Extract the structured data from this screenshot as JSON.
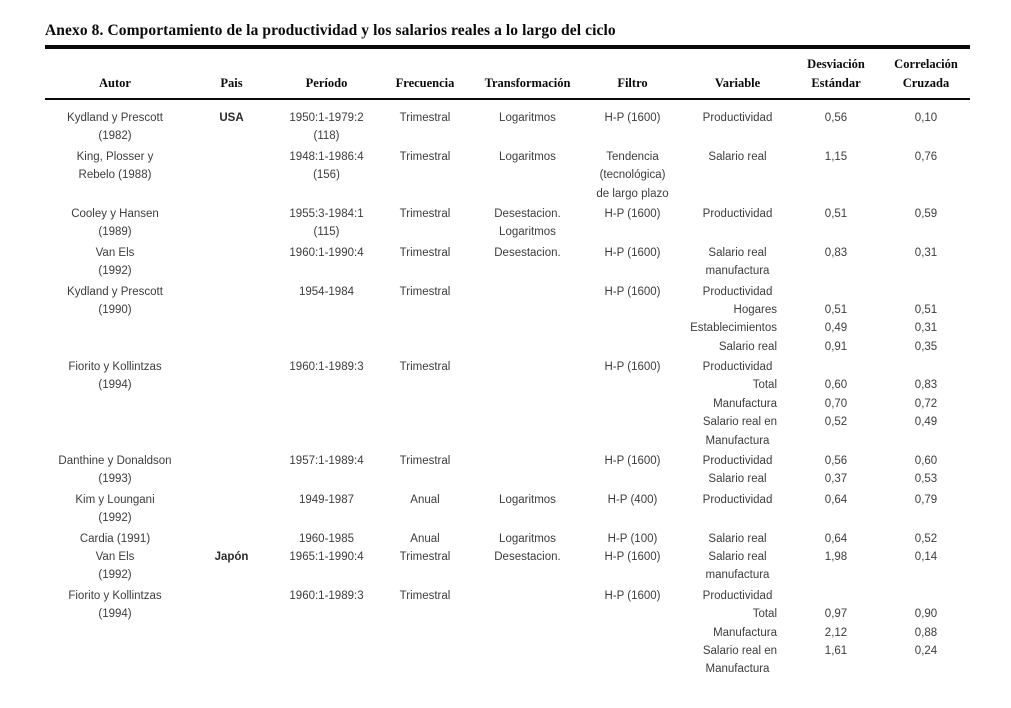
{
  "title": "Anexo 8. Comportamiento de la productividad y los salarios reales a lo largo del ciclo",
  "table": {
    "columns": [
      "Autor",
      "Pais",
      "Período",
      "Frecuencia",
      "Transformación",
      "Filtro",
      "Variable",
      "Desviación\nEstándar",
      "Correlación\nCruzada"
    ],
    "rows": [
      {
        "cells": [
          "Kydland y Prescott",
          "USA",
          "1950:1-1979:2",
          "Trimestral",
          "Logaritmos",
          "H-P (1600)",
          "Productividad",
          "0,56",
          "0,10"
        ]
      },
      {
        "cells": [
          "(1982)",
          "",
          "(118)",
          "",
          "",
          "",
          "",
          "",
          ""
        ]
      },
      {
        "cells": [
          "King, Plosser y",
          "",
          "1948:1-1986:4",
          "Trimestral",
          "Logaritmos",
          "Tendencia",
          "Salario real",
          "1,15",
          "0,76"
        ],
        "gap": true
      },
      {
        "cells": [
          "Rebelo (1988)",
          "",
          "(156)",
          "",
          "",
          "(tecnológica)",
          "",
          "",
          ""
        ]
      },
      {
        "cells": [
          "",
          "",
          "",
          "",
          "",
          "de largo plazo",
          "",
          "",
          ""
        ]
      },
      {
        "cells": [
          "Cooley y Hansen",
          "",
          "1955:3-1984:1",
          "Trimestral",
          "Desestacion.",
          "H-P (1600)",
          "Productividad",
          "0,51",
          "0,59"
        ],
        "gap": true
      },
      {
        "cells": [
          "(1989)",
          "",
          "(115)",
          "",
          "Logaritmos",
          "",
          "",
          "",
          ""
        ]
      },
      {
        "cells": [
          "Van Els",
          "",
          "1960:1-1990:4",
          "Trimestral",
          "Desestacion.",
          "H-P (1600)",
          "Salario real",
          "0,83",
          "0,31"
        ],
        "gap": true
      },
      {
        "cells": [
          "(1992)",
          "",
          "",
          "",
          "",
          "",
          "manufactura",
          "",
          ""
        ]
      },
      {
        "cells": [
          "Kydland y Prescott",
          "",
          "1954-1984",
          "Trimestral",
          "",
          "H-P (1600)",
          "Productividad",
          "",
          ""
        ],
        "gap": true
      },
      {
        "cells": [
          "(1990)",
          "",
          "",
          "",
          "",
          "",
          "Hogares",
          "0,51",
          "0,51"
        ],
        "va": "r"
      },
      {
        "cells": [
          "",
          "",
          "",
          "",
          "",
          "",
          "Establecimientos",
          "0,49",
          "0,31"
        ],
        "va": "r"
      },
      {
        "cells": [
          "",
          "",
          "",
          "",
          "",
          "",
          "Salario real",
          "0,91",
          "0,35"
        ],
        "va": "r"
      },
      {
        "cells": [
          "Fiorito y Kollintzas",
          "",
          "1960:1-1989:3",
          "Trimestral",
          "",
          "H-P (1600)",
          "Productividad",
          "",
          ""
        ],
        "gap": true
      },
      {
        "cells": [
          "(1994)",
          "",
          "",
          "",
          "",
          "",
          "Total",
          "0,60",
          "0,83"
        ],
        "va": "r"
      },
      {
        "cells": [
          "",
          "",
          "",
          "",
          "",
          "",
          "Manufactura",
          "0,70",
          "0,72"
        ],
        "va": "r"
      },
      {
        "cells": [
          "",
          "",
          "",
          "",
          "",
          "",
          "Salario real en",
          "0,52",
          "0,49"
        ],
        "va": "r"
      },
      {
        "cells": [
          "",
          "",
          "",
          "",
          "",
          "",
          "Manufactura",
          "",
          ""
        ]
      },
      {
        "cells": [
          "Danthine y Donaldson",
          "",
          "1957:1-1989:4",
          "Trimestral",
          "",
          "H-P (1600)",
          "Productividad",
          "0,56",
          "0,60"
        ],
        "gap": true
      },
      {
        "cells": [
          "(1993)",
          "",
          "",
          "",
          "",
          "",
          "Salario real",
          "0,37",
          "0,53"
        ]
      },
      {
        "cells": [
          "Kim y Loungani",
          "",
          "1949-1987",
          "Anual",
          "Logaritmos",
          "H-P (400)",
          "Productividad",
          "0,64",
          "0,79"
        ],
        "gap": true
      },
      {
        "cells": [
          "(1992)",
          "",
          "",
          "",
          "",
          "",
          "",
          "",
          ""
        ]
      },
      {
        "cells": [
          "Cardia (1991)",
          "",
          "1960-1985",
          "Anual",
          "Logaritmos",
          "H-P (100)",
          "Salario real",
          "0,64",
          "0,52"
        ],
        "gap": true
      },
      {
        "cells": [
          "Van Els",
          "Japón",
          "1965:1-1990:4",
          "Trimestral",
          "Desestacion.",
          "H-P (1600)",
          "Salario real",
          "1,98",
          "0,14"
        ]
      },
      {
        "cells": [
          "(1992)",
          "",
          "",
          "",
          "",
          "",
          "manufactura",
          "",
          ""
        ]
      },
      {
        "cells": [
          "Fiorito y Kollintzas",
          "",
          "1960:1-1989:3",
          "Trimestral",
          "",
          "H-P (1600)",
          "Productividad",
          "",
          ""
        ],
        "gap": true
      },
      {
        "cells": [
          "(1994)",
          "",
          "",
          "",
          "",
          "",
          "Total",
          "0,97",
          "0,90"
        ],
        "va": "r"
      },
      {
        "cells": [
          "",
          "",
          "",
          "",
          "",
          "",
          "Manufactura",
          "2,12",
          "0,88"
        ],
        "va": "r"
      },
      {
        "cells": [
          "",
          "",
          "",
          "",
          "",
          "",
          "Salario real en",
          "1,61",
          "0,24"
        ],
        "va": "r"
      },
      {
        "cells": [
          "",
          "",
          "",
          "",
          "",
          "",
          "Manufactura",
          "",
          ""
        ]
      }
    ]
  }
}
